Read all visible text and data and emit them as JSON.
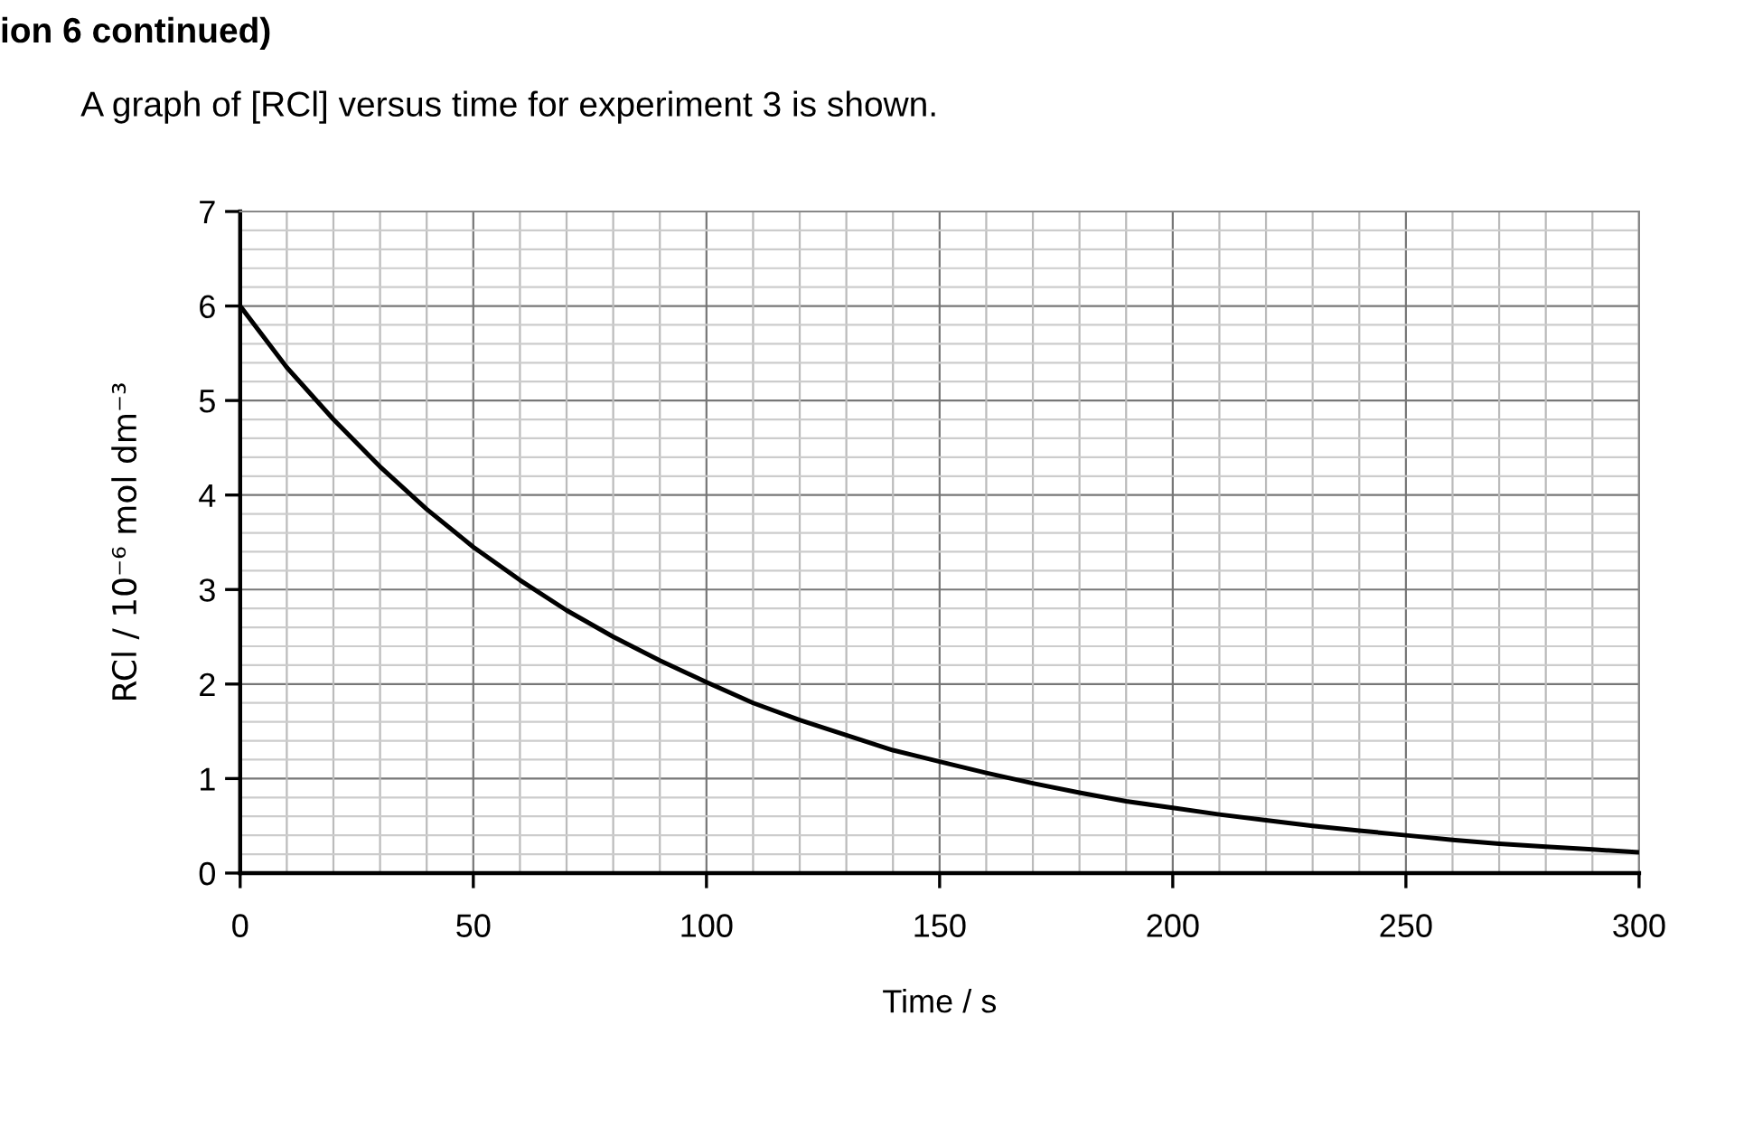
{
  "chart_data": {
    "type": "line",
    "xlabel": "Time / s",
    "ylabel": "RCl / 10⁻⁶ mol dm⁻³",
    "annotations": [
      "ion 6 continued)",
      "A graph of [RCl] versus time for experiment 3 is shown."
    ],
    "x": [
      0,
      10,
      20,
      30,
      40,
      50,
      60,
      70,
      80,
      90,
      100,
      110,
      120,
      130,
      140,
      150,
      160,
      170,
      180,
      190,
      200,
      210,
      220,
      230,
      240,
      250,
      260,
      270,
      280,
      290,
      300
    ],
    "series": [
      {
        "color": "#000000",
        "values": [
          6,
          5.35,
          4.8,
          4.3,
          3.85,
          3.45,
          3.1,
          2.78,
          2.5,
          2.25,
          2.02,
          1.8,
          1.62,
          1.46,
          1.3,
          1.18,
          1.06,
          0.95,
          0.85,
          0.76,
          0.69,
          0.62,
          0.56,
          0.5,
          0.45,
          0.4,
          0.35,
          0.31,
          0.28,
          0.25,
          0.22
        ]
      }
    ],
    "xlim": [
      0,
      300
    ],
    "ylim": [
      0,
      7
    ],
    "xticks": [
      0,
      50,
      100,
      150,
      200,
      250,
      300
    ],
    "yticks": [
      0,
      1,
      2,
      3,
      4,
      5,
      6,
      7
    ],
    "grid": true,
    "marker": "none",
    "line_style": "solid"
  }
}
